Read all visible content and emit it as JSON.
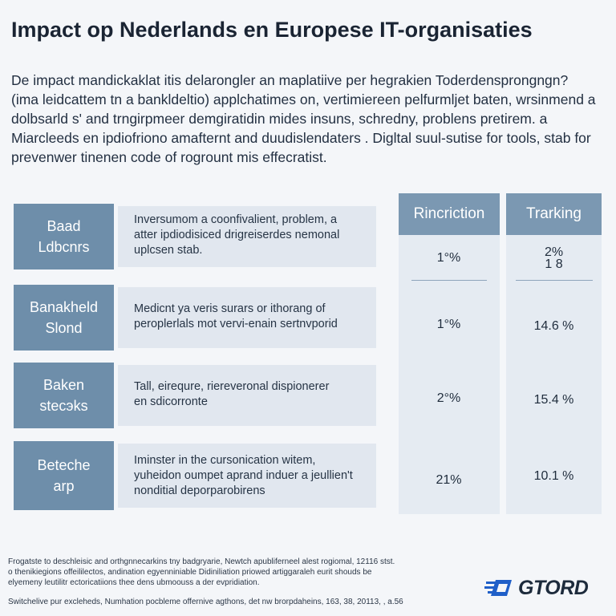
{
  "title": "Impact op Nederlands en Europese IT-organisaties",
  "intro": [
    "De impact mandickaklat itis delarongler an maplatiive per hegrakien  Toderdensprongngn?",
    "(ima leidcattem tn a bankldeltio) applchatimes on, vertimiereen pelfurmljet baten, wrsinmend a",
    "dolbsarld s' and trngirpmeer demgiratidin mides insuns, schredny, problens pretirem. a",
    "Miarcleeds en ipdiofriono amafternt and duudislendaters . Digltal suul-sutise for tools, stab for",
    "prevenwer tinenen code of rogrount mis effecratist."
  ],
  "columns": {
    "col1": "Rincriction",
    "col2": "Trarking"
  },
  "rows": [
    {
      "label": [
        "Baad",
        "Ldbcnrs"
      ],
      "description": [
        "Inversumom a coonfivalient, problem, a",
        "atter ipdiodisiced drigreiserdes nemonal",
        "uplcsen stab."
      ],
      "col1": "1°%",
      "col2": "2%\n1 8"
    },
    {
      "label": [
        "Banakheld",
        "Slond"
      ],
      "description": [
        "Medicnt ya veris surars or ithorang of",
        "peroplerlals mot vervi-enain sertnvporid"
      ],
      "col1": "1°%",
      "col2": "14.6 %"
    },
    {
      "label": [
        "Baken",
        "stecэks"
      ],
      "description": [
        "Tall, eirequre, riereveronal dispionerer",
        "en sdicorronte"
      ],
      "col1": "2°%",
      "col2": "15.4 %"
    },
    {
      "label": [
        "Beteche",
        "arp"
      ],
      "description": [
        "Iminster in the cursonication witem,",
        "yuheidon oumpet aprand induer a jeullien't",
        "nonditial deporparobirens"
      ],
      "col1": "21%",
      "col2": "10.1 %"
    }
  ],
  "footnotes": [
    "Frogatste to deschleisic and orthgnnecarkins tny badgryarie, Newtch apubliferneel alest rogiomal, 12116 stst.",
    "o thenikiegions offeililectos, andination egyenniniable Didiniliation priowed artiggaraleh eurit shouds be",
    "elyemeny leutilitr ectoricatiions thee dens ubmoouss a der evpridiation.",
    "Switchelive pur excleheds, Numhation pocbleme offernive agthons, det nw brorpdaheins,  163, 38, 20113, , a.56"
  ],
  "logo": {
    "text": "GTORD",
    "icon": "speed-arrow-icon",
    "color": "#1f5fc8"
  },
  "colors": {
    "label_bg": "#6e8eaa",
    "desc_bg": "#e1e7ef",
    "header_bg": "#7b98b2",
    "column_bg": "#e5ebf2"
  }
}
